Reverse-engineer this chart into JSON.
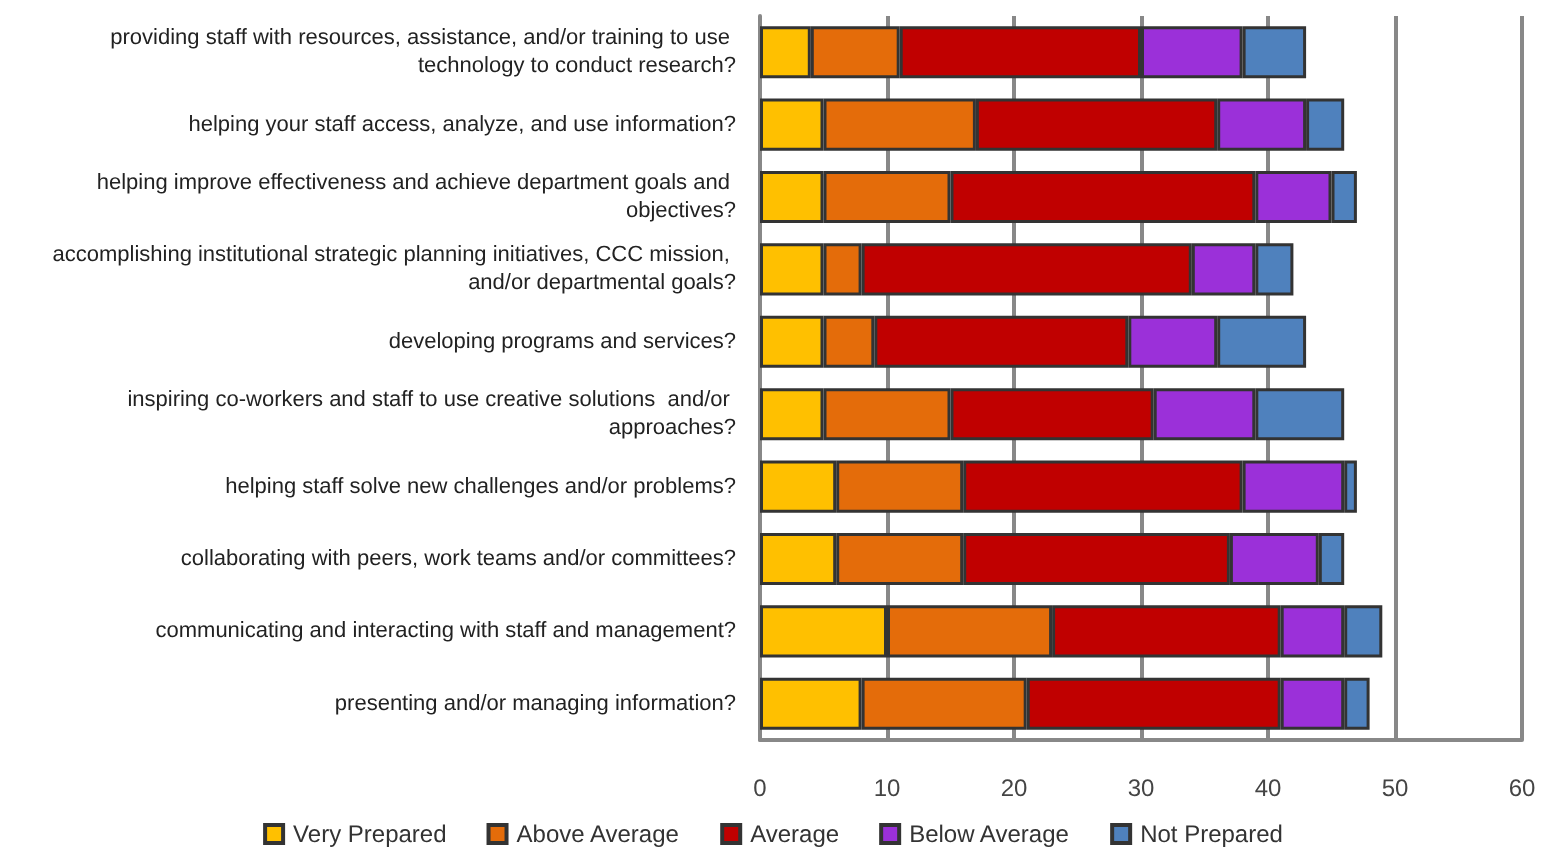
{
  "chart_data": {
    "type": "bar",
    "orientation": "horizontal",
    "stacked": true,
    "categories": [
      "providing staff with resources, assistance, and/or training to use technology to conduct research?",
      "helping your staff access, analyze, and use information?",
      "helping improve effectiveness and achieve department goals and objectives?",
      "accomplishing institutional strategic planning initiatives, CCC mission, and/or departmental goals?",
      "developing programs and services?",
      "inspiring co-workers and staff to use creative solutions  and/or approaches?",
      "helping staff solve new challenges and/or problems?",
      "collaborating with peers, work teams and/or committees?",
      "communicating and interacting with staff and management?",
      "presenting and/or managing information?"
    ],
    "series": [
      {
        "name": "Very Prepared",
        "color": "#ffc000",
        "values": [
          4,
          5,
          5,
          5,
          5,
          5,
          6,
          6,
          10,
          8
        ]
      },
      {
        "name": "Above Average",
        "color": "#e46c0a",
        "values": [
          7,
          12,
          10,
          3,
          4,
          10,
          10,
          10,
          13,
          13
        ]
      },
      {
        "name": "Average",
        "color": "#c00000",
        "values": [
          19,
          19,
          24,
          26,
          20,
          16,
          22,
          21,
          18,
          20
        ]
      },
      {
        "name": "Below Average",
        "color": "#9b30d9",
        "values": [
          8,
          7,
          6,
          5,
          7,
          8,
          8,
          7,
          5,
          5
        ]
      },
      {
        "name": "Not Prepared",
        "color": "#4f81bd",
        "values": [
          5,
          3,
          2,
          3,
          7,
          7,
          1,
          2,
          3,
          2
        ]
      }
    ],
    "xlim": [
      0,
      60
    ],
    "xticks": [
      0,
      10,
      20,
      30,
      40,
      50,
      60
    ],
    "grid": "x",
    "legend": "bottom"
  }
}
